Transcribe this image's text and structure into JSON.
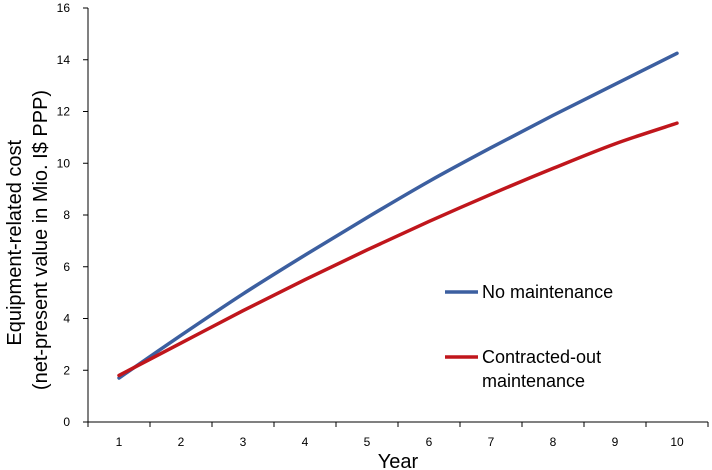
{
  "chart_data": {
    "type": "line",
    "title": "",
    "xlabel": "Year",
    "ylabel_lines": [
      "Equipment-related cost",
      "(net-present value in Mio. I$ PPP)"
    ],
    "categories": [
      "1",
      "2",
      "3",
      "4",
      "5",
      "6",
      "7",
      "8",
      "9",
      "10"
    ],
    "ylim": [
      0,
      16
    ],
    "yticks": [
      0,
      2,
      4,
      6,
      8,
      10,
      12,
      14,
      16
    ],
    "legend_position": "right-center",
    "series": [
      {
        "name": "No maintenance",
        "legend_lines": [
          "No maintenance"
        ],
        "color": "#3c5fa0",
        "values": [
          1.7,
          3.35,
          4.95,
          6.45,
          7.9,
          9.3,
          10.6,
          11.85,
          13.05,
          14.25
        ]
      },
      {
        "name": "Contracted-out maintenance",
        "legend_lines": [
          "Contracted-out",
          "maintenance"
        ],
        "color": "#c0161c",
        "values": [
          1.8,
          3.05,
          4.3,
          5.5,
          6.65,
          7.75,
          8.8,
          9.8,
          10.75,
          11.55
        ]
      }
    ]
  }
}
